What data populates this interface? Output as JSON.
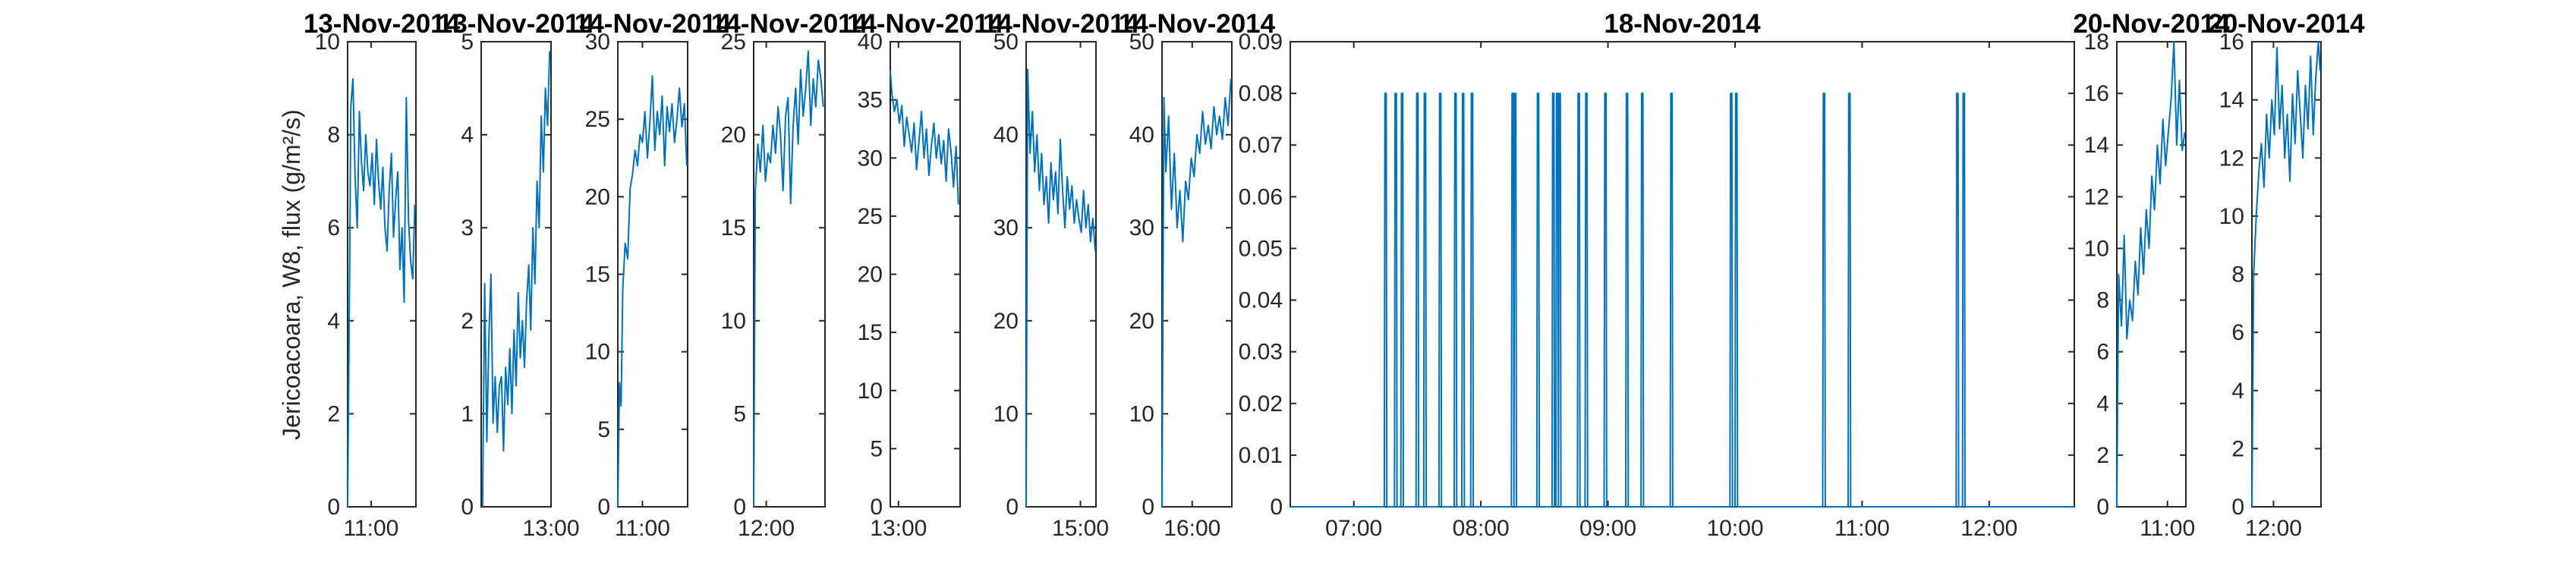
{
  "ylabel": "Jericoacoara, W8, flux (g/m²/s)",
  "series_color": "#0072BD",
  "chart_data": [
    {
      "type": "line",
      "title": "13-Nov-2014",
      "ylim": [
        0,
        10
      ],
      "yticks": [
        "0",
        "2",
        "4",
        "6",
        "8",
        "10"
      ],
      "xlim": [
        10.78,
        11.42
      ],
      "xticks": [
        {
          "v": 11.0,
          "label": "11:00"
        }
      ],
      "x": [
        10.78,
        10.8,
        10.81,
        10.83,
        10.85,
        10.87,
        10.89,
        10.91,
        10.93,
        10.95,
        10.97,
        10.99,
        11.01,
        11.03,
        11.05,
        11.07,
        11.09,
        11.11,
        11.13,
        11.15,
        11.17,
        11.19,
        11.21,
        11.23,
        11.25,
        11.27,
        11.29,
        11.31,
        11.33,
        11.35,
        11.37,
        11.39,
        11.41
      ],
      "y": [
        0,
        5.3,
        8.6,
        9.2,
        7.1,
        6.0,
        8.5,
        7.4,
        6.8,
        8.0,
        7.2,
        6.9,
        7.6,
        6.5,
        7.9,
        7.0,
        6.4,
        7.3,
        6.0,
        5.5,
        6.8,
        7.6,
        5.8,
        6.6,
        7.2,
        5.1,
        6.0,
        4.4,
        8.8,
        6.2,
        5.3,
        4.9,
        6.5
      ]
    },
    {
      "type": "line",
      "title": "13-Nov-2014",
      "ylim": [
        0,
        5
      ],
      "yticks": [
        "0",
        "1",
        "2",
        "3",
        "4",
        "5"
      ],
      "xlim": [
        12.0,
        13.0
      ],
      "xticks": [
        {
          "v": 13.0,
          "label": "13:00"
        }
      ],
      "x": [
        12.02,
        12.05,
        12.08,
        12.11,
        12.14,
        12.17,
        12.2,
        12.23,
        12.26,
        12.29,
        12.32,
        12.35,
        12.38,
        12.41,
        12.44,
        12.47,
        12.5,
        12.53,
        12.56,
        12.59,
        12.62,
        12.65,
        12.68,
        12.71,
        12.74,
        12.77,
        12.8,
        12.83,
        12.86,
        12.89,
        12.92,
        12.95,
        12.98
      ],
      "y": [
        0,
        2.4,
        0.7,
        1.8,
        2.5,
        0.9,
        1.4,
        0.8,
        1.3,
        1.4,
        0.6,
        1.5,
        1.1,
        1.7,
        1.0,
        1.9,
        1.3,
        2.3,
        1.6,
        2.0,
        1.5,
        2.2,
        2.6,
        1.9,
        3.0,
        2.4,
        3.5,
        3.0,
        4.2,
        3.6,
        4.5,
        4.1,
        4.9
      ]
    },
    {
      "type": "line",
      "title": "14-Nov-2014",
      "ylim": [
        0,
        30
      ],
      "yticks": [
        "0",
        "5",
        "10",
        "15",
        "20",
        "25",
        "30"
      ],
      "xlim": [
        10.7,
        11.55
      ],
      "xticks": [
        {
          "v": 11.0,
          "label": "11:00"
        }
      ],
      "x": [
        10.7,
        10.72,
        10.74,
        10.76,
        10.79,
        10.82,
        10.85,
        10.88,
        10.91,
        10.94,
        10.97,
        11.0,
        11.03,
        11.06,
        11.09,
        11.12,
        11.15,
        11.18,
        11.21,
        11.24,
        11.27,
        11.3,
        11.33,
        11.36,
        11.39,
        11.42,
        11.45,
        11.48,
        11.51,
        11.54
      ],
      "y": [
        0,
        8.0,
        6.5,
        14.0,
        17.0,
        16.0,
        20.5,
        21.5,
        23.0,
        22.0,
        24.0,
        23.5,
        25.5,
        22.5,
        24.8,
        27.8,
        23.0,
        25.5,
        24.0,
        26.5,
        22.0,
        25.8,
        24.2,
        26.0,
        23.5,
        25.0,
        27.0,
        24.5,
        26.0,
        22.0
      ]
    },
    {
      "type": "line",
      "title": "14-Nov-2014",
      "ylim": [
        0,
        25
      ],
      "yticks": [
        "0",
        "5",
        "10",
        "15",
        "20",
        "25"
      ],
      "xlim": [
        11.85,
        12.7
      ],
      "xticks": [
        {
          "v": 12.0,
          "label": "12:00"
        }
      ],
      "x": [
        11.85,
        11.87,
        11.9,
        11.93,
        11.96,
        11.99,
        12.02,
        12.05,
        12.08,
        12.11,
        12.14,
        12.17,
        12.2,
        12.23,
        12.26,
        12.29,
        12.32,
        12.35,
        12.38,
        12.41,
        12.44,
        12.47,
        12.5,
        12.53,
        12.56,
        12.59,
        12.62,
        12.65,
        12.68
      ],
      "y": [
        0,
        17.0,
        19.5,
        18.0,
        20.5,
        17.5,
        19.0,
        18.5,
        20.5,
        19.0,
        21.5,
        20.0,
        17.0,
        21.0,
        22.0,
        16.3,
        20.5,
        22.5,
        19.5,
        23.5,
        21.0,
        22.5,
        24.5,
        20.5,
        23.0,
        21.5,
        24.0,
        23.0,
        21.5
      ]
    },
    {
      "type": "line",
      "title": "14-Nov-2014",
      "ylim": [
        0,
        40
      ],
      "yticks": [
        "0",
        "5",
        "10",
        "15",
        "20",
        "25",
        "30",
        "35",
        "40"
      ],
      "xlim": [
        12.9,
        13.75
      ],
      "xticks": [
        {
          "v": 13.0,
          "label": "13:00"
        }
      ],
      "x": [
        12.9,
        12.92,
        12.95,
        12.98,
        13.01,
        13.04,
        13.07,
        13.1,
        13.13,
        13.16,
        13.19,
        13.22,
        13.25,
        13.28,
        13.31,
        13.34,
        13.37,
        13.4,
        13.43,
        13.46,
        13.49,
        13.52,
        13.55,
        13.58,
        13.61,
        13.64,
        13.67,
        13.7,
        13.73
      ],
      "y": [
        37.5,
        35.5,
        34.0,
        35.0,
        33.0,
        34.5,
        31.0,
        33.5,
        32.0,
        30.5,
        33.0,
        29.0,
        31.5,
        34.0,
        30.0,
        32.5,
        28.5,
        31.0,
        33.0,
        30.0,
        32.0,
        29.5,
        31.5,
        28.0,
        32.5,
        30.5,
        27.5,
        31.0,
        26.0
      ]
    },
    {
      "type": "line",
      "title": "14-Nov-2014",
      "ylim": [
        0,
        50
      ],
      "yticks": [
        "0",
        "10",
        "20",
        "30",
        "40",
        "50"
      ],
      "xlim": [
        14.3,
        15.2
      ],
      "xticks": [
        {
          "v": 15.0,
          "label": "15:00"
        }
      ],
      "x": [
        14.3,
        14.32,
        14.35,
        14.38,
        14.41,
        14.44,
        14.47,
        14.5,
        14.53,
        14.56,
        14.59,
        14.62,
        14.65,
        14.68,
        14.71,
        14.74,
        14.77,
        14.8,
        14.83,
        14.86,
        14.89,
        14.92,
        14.95,
        14.98,
        15.01,
        15.04,
        15.07,
        15.1,
        15.13,
        15.16,
        15.19
      ],
      "y": [
        0,
        47.0,
        38.0,
        42.5,
        36.0,
        40.0,
        34.0,
        38.0,
        32.5,
        35.5,
        30.5,
        37.0,
        33.0,
        36.0,
        31.5,
        39.5,
        34.0,
        30.0,
        35.5,
        32.0,
        34.5,
        30.5,
        33.0,
        31.0,
        29.5,
        34.0,
        30.0,
        32.5,
        28.5,
        31.0,
        27.5
      ]
    },
    {
      "type": "line",
      "title": "14-Nov-2014",
      "ylim": [
        0,
        50
      ],
      "yticks": [
        "0",
        "10",
        "20",
        "30",
        "40",
        "50"
      ],
      "xlim": [
        15.68,
        16.42
      ],
      "xticks": [
        {
          "v": 16.0,
          "label": "16:00"
        }
      ],
      "x": [
        15.68,
        15.7,
        15.72,
        15.75,
        15.78,
        15.81,
        15.84,
        15.87,
        15.9,
        15.93,
        15.96,
        15.99,
        16.02,
        16.05,
        16.08,
        16.11,
        16.14,
        16.17,
        16.2,
        16.23,
        16.26,
        16.29,
        16.32,
        16.35,
        16.38,
        16.41
      ],
      "y": [
        0,
        44.0,
        36.0,
        42.0,
        32.0,
        38.0,
        30.0,
        34.0,
        28.5,
        35.0,
        33.0,
        37.5,
        35.5,
        40.0,
        38.0,
        42.5,
        39.0,
        41.0,
        38.5,
        43.0,
        40.0,
        42.0,
        39.5,
        44.0,
        41.0,
        46.0
      ]
    },
    {
      "type": "line",
      "title": "18-Nov-2014",
      "ylim": [
        0,
        0.09
      ],
      "yticks": [
        "0",
        "0.01",
        "0.02",
        "0.03",
        "0.04",
        "0.05",
        "0.06",
        "0.07",
        "0.08",
        "0.09"
      ],
      "xlim": [
        6.5,
        12.67
      ],
      "xticks": [
        {
          "v": 7,
          "label": "07:00"
        },
        {
          "v": 8,
          "label": "08:00"
        },
        {
          "v": 9,
          "label": "09:00"
        },
        {
          "v": 10,
          "label": "10:00"
        },
        {
          "v": 11,
          "label": "11:00"
        },
        {
          "v": 12,
          "label": "12:00"
        }
      ],
      "spikes": [
        7.25,
        7.33,
        7.38,
        7.5,
        7.56,
        7.68,
        7.8,
        7.86,
        7.93,
        8.25,
        8.27,
        8.45,
        8.57,
        8.6,
        8.62,
        8.77,
        8.83,
        8.98,
        9.15,
        9.27,
        9.5,
        9.97,
        10.01,
        10.7,
        10.9,
        11.75,
        11.8
      ]
    },
    {
      "type": "line",
      "title": "20-Nov-2014",
      "ylim": [
        0,
        18
      ],
      "yticks": [
        "0",
        "2",
        "4",
        "6",
        "8",
        "10",
        "12",
        "14",
        "16",
        "18"
      ],
      "xlim": [
        10.45,
        11.2
      ],
      "xticks": [
        {
          "v": 11.0,
          "label": "11:00"
        }
      ],
      "x": [
        10.45,
        10.47,
        10.5,
        10.53,
        10.56,
        10.59,
        10.62,
        10.65,
        10.68,
        10.71,
        10.74,
        10.77,
        10.8,
        10.83,
        10.86,
        10.89,
        10.92,
        10.95,
        10.98,
        11.01,
        11.04,
        11.07,
        11.1,
        11.13,
        11.16,
        11.19
      ],
      "y": [
        0,
        9.0,
        7.0,
        10.5,
        6.5,
        8.0,
        7.2,
        9.5,
        8.2,
        10.8,
        9.0,
        11.5,
        10.0,
        12.8,
        11.5,
        14.0,
        12.5,
        15.0,
        13.2,
        14.5,
        15.8,
        18.0,
        14.0,
        16.5,
        13.8,
        14.5
      ]
    },
    {
      "type": "line",
      "title": "20-Nov-2014",
      "ylim": [
        0,
        16
      ],
      "yticks": [
        "0",
        "2",
        "4",
        "6",
        "8",
        "10",
        "12",
        "14",
        "16"
      ],
      "xlim": [
        11.75,
        12.55
      ],
      "xticks": [
        {
          "v": 12.0,
          "label": "12:00"
        }
      ],
      "x": [
        11.75,
        11.77,
        11.8,
        11.83,
        11.86,
        11.89,
        11.92,
        11.95,
        11.98,
        12.01,
        12.04,
        12.07,
        12.1,
        12.13,
        12.16,
        12.19,
        12.22,
        12.25,
        12.28,
        12.31,
        12.34,
        12.37,
        12.4,
        12.43,
        12.46,
        12.49,
        12.52,
        12.54
      ],
      "y": [
        0,
        8.0,
        10.0,
        11.5,
        12.5,
        11.0,
        13.5,
        12.0,
        14.0,
        12.8,
        15.8,
        13.0,
        14.5,
        12.0,
        13.5,
        11.2,
        14.2,
        12.5,
        15.0,
        13.5,
        12.0,
        14.5,
        13.0,
        15.5,
        12.8,
        14.8,
        16.0,
        15.0
      ]
    }
  ]
}
